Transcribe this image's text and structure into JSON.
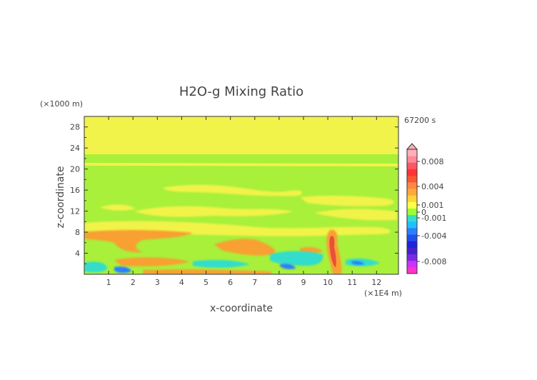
{
  "chart_data": {
    "type": "heatmap",
    "title": "H2O-g Mixing Ratio",
    "xlabel": "x-coordinate",
    "ylabel": "z-coordinate",
    "x_unit": "(×1E4 m)",
    "y_unit": "(×1000 m)",
    "time_label": "67200 s",
    "xlim": [
      0,
      12.9
    ],
    "ylim": [
      0,
      30
    ],
    "x_ticks": [
      "1",
      "2",
      "3",
      "4",
      "5",
      "6",
      "7",
      "8",
      "9",
      "10",
      "11",
      "12"
    ],
    "y_ticks": [
      "4",
      "8",
      "12",
      "16",
      "20",
      "24",
      "28"
    ],
    "colorbar_ticks": [
      "0.008",
      "0.004",
      "0.001",
      "0",
      "-0.001",
      "-0.004",
      "-0.008"
    ],
    "colorbar_colors": [
      "#ff33cc",
      "#cc33ff",
      "#7a2be2",
      "#4422cc",
      "#2222dd",
      "#1f4ff0",
      "#2a7fff",
      "#1fc0ff",
      "#33ddcc",
      "#99ff33",
      "#ffff44",
      "#ffd43a",
      "#ffa83a",
      "#ff8844",
      "#ff5533",
      "#ff3333",
      "#ff5566",
      "#ff8a99",
      "#ffb0b8"
    ]
  }
}
